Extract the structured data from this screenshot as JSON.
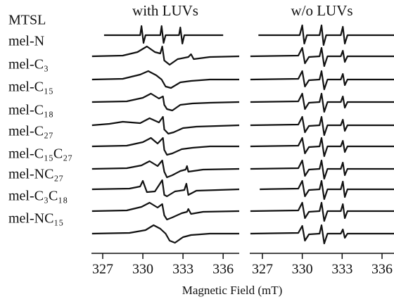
{
  "chart_data": [
    {
      "type": "line",
      "title": "with LUVs",
      "xlabel": "Magnetic Field (mT)",
      "xlim": [
        326.16,
        337.2
      ],
      "xticks": [
        327,
        330,
        333,
        336
      ],
      "color": "#111111",
      "series": [
        {
          "name": "MTSL",
          "x": [
            327.1,
            329.8,
            329.9,
            330.05,
            330.2,
            331.3,
            331.4,
            331.55,
            331.7,
            332.7,
            332.8,
            332.95,
            333.1,
            336.0
          ],
          "values": [
            0,
            0,
            13,
            -11,
            0,
            0,
            13,
            -11,
            0,
            0,
            11,
            -12,
            0,
            0
          ]
        },
        {
          "name": "mel-N",
          "x": [
            326.2,
            328.5,
            329.6,
            330.3,
            330.9,
            331.3,
            331.45,
            331.6,
            332.0,
            332.6,
            333.4,
            333.6,
            333.8,
            335,
            337.2
          ],
          "values": [
            0,
            1,
            6,
            14,
            6,
            4,
            14,
            -6,
            -12,
            -4,
            -1,
            3,
            -4,
            -1,
            0
          ]
        },
        {
          "name": "mel-C₃",
          "x": [
            326.2,
            328.5,
            329.8,
            330.4,
            331.0,
            331.4,
            331.7,
            332.1,
            332.8,
            333.6,
            335,
            337.2
          ],
          "values": [
            0,
            1,
            7,
            12,
            6,
            0,
            -10,
            -12,
            -4,
            -2,
            0,
            0
          ]
        },
        {
          "name": "mel-C₁₅",
          "x": [
            326.2,
            328.8,
            330.0,
            330.6,
            331.2,
            331.5,
            331.6,
            331.8,
            332.2,
            332.8,
            333.7,
            335,
            337.2
          ],
          "values": [
            0,
            1,
            6,
            12,
            5,
            8,
            -4,
            -10,
            -12,
            -4,
            -2,
            -1,
            0
          ]
        },
        {
          "name": "mel-C₁₈",
          "x": [
            326.2,
            327.5,
            328.5,
            329.8,
            330.5,
            331.2,
            331.5,
            331.6,
            331.9,
            332.3,
            333,
            334,
            337.2
          ],
          "values": [
            0,
            2,
            5,
            3,
            10,
            4,
            12,
            -6,
            -12,
            -10,
            -4,
            -2,
            0
          ]
        },
        {
          "name": "mel-C₂₇",
          "x": [
            326.2,
            328.8,
            330.0,
            330.6,
            331.1,
            331.5,
            331.6,
            331.8,
            332.2,
            332.9,
            333.7,
            335,
            337.2
          ],
          "values": [
            0,
            1,
            6,
            12,
            4,
            12,
            -5,
            -12,
            -10,
            -4,
            -2,
            0,
            0
          ]
        },
        {
          "name": "mel-C₁₅C₂₇",
          "x": [
            326.2,
            328.8,
            329.9,
            330.5,
            331.1,
            331.45,
            331.6,
            331.8,
            332.2,
            332.8,
            333.2,
            333.3,
            333.4,
            334.5,
            337.2
          ],
          "values": [
            0,
            1,
            5,
            11,
            4,
            12,
            -4,
            -12,
            -9,
            -3,
            -1,
            4,
            -4,
            -1,
            0
          ]
        },
        {
          "name": "mel-NC₂₇",
          "x": [
            326.2,
            329,
            329.8,
            330.0,
            330.3,
            330.9,
            331.45,
            331.6,
            331.8,
            332.4,
            333.1,
            333.25,
            333.4,
            334,
            337.2
          ],
          "values": [
            0,
            1,
            4,
            12,
            -4,
            -3,
            13,
            -8,
            -10,
            -3,
            -1,
            8,
            -8,
            -2,
            0
          ]
        },
        {
          "name": "mel-C₃C₁₈",
          "x": [
            326.2,
            328.8,
            329.9,
            330.5,
            331.1,
            331.45,
            331.6,
            331.8,
            332.2,
            332.9,
            333.3,
            333.4,
            333.6,
            334.5,
            337.2
          ],
          "values": [
            0,
            1,
            6,
            12,
            5,
            10,
            -6,
            -12,
            -9,
            -3,
            -1,
            3,
            -4,
            -1,
            0
          ]
        },
        {
          "name": "mel-NC₁₅",
          "x": [
            326.2,
            329,
            330.2,
            330.8,
            331.3,
            331.7,
            332.0,
            332.4,
            333.0,
            333.6,
            335,
            337.2
          ],
          "values": [
            0,
            1,
            5,
            12,
            7,
            0,
            -10,
            -13,
            -5,
            -2,
            0,
            0
          ]
        }
      ]
    },
    {
      "type": "line",
      "title": "w/o LUVs",
      "xlim": [
        326.05,
        336.9
      ],
      "xticks": [
        327,
        330,
        333,
        336
      ],
      "color": "#111111",
      "series": [
        {
          "x": [
            326.7,
            329.8,
            330.0,
            330.15,
            330.35,
            331.3,
            331.45,
            331.6,
            331.8,
            332.9,
            333.05,
            333.2,
            333.4,
            336.9
          ],
          "values": [
            0,
            0,
            14,
            -12,
            0,
            0,
            14,
            -14,
            0,
            0,
            12,
            -12,
            0,
            0
          ]
        },
        {
          "x": [
            326.1,
            329.7,
            330.0,
            330.2,
            330.5,
            331.3,
            331.45,
            331.65,
            331.9,
            332.9,
            333.05,
            333.2,
            333.4,
            336.9
          ],
          "values": [
            0,
            1,
            12,
            -10,
            -1,
            0,
            12,
            -14,
            0,
            0,
            8,
            -8,
            0,
            0
          ]
        },
        {
          "x": [
            326.1,
            329.7,
            330.0,
            330.2,
            330.5,
            331.3,
            331.45,
            331.65,
            331.9,
            332.9,
            333.05,
            333.2,
            333.4,
            336.9
          ],
          "values": [
            0,
            1,
            12,
            -10,
            -1,
            0,
            12,
            -14,
            0,
            0,
            8,
            -8,
            0,
            0
          ]
        },
        {
          "x": [
            326.1,
            329.7,
            330.0,
            330.2,
            330.5,
            331.3,
            331.45,
            331.65,
            331.9,
            332.9,
            333.05,
            333.2,
            333.4,
            336.9
          ],
          "values": [
            0,
            1,
            12,
            -10,
            -1,
            0,
            12,
            -14,
            0,
            0,
            8,
            -8,
            0,
            0
          ]
        },
        {
          "x": [
            326.1,
            329.7,
            330.0,
            330.2,
            330.5,
            331.3,
            331.45,
            331.65,
            331.9,
            332.9,
            333.05,
            333.2,
            333.4,
            336.9
          ],
          "values": [
            0,
            1,
            12,
            -10,
            -1,
            0,
            12,
            -14,
            0,
            0,
            8,
            -8,
            0,
            0
          ]
        },
        {
          "x": [
            326.1,
            329.7,
            330.0,
            330.2,
            330.5,
            331.3,
            331.45,
            331.65,
            331.9,
            332.9,
            333.05,
            333.2,
            333.4,
            336.9
          ],
          "values": [
            0,
            1,
            12,
            -10,
            -1,
            0,
            12,
            -14,
            0,
            0,
            8,
            -8,
            0,
            0
          ]
        },
        {
          "x": [
            326.1,
            329.7,
            330.0,
            330.2,
            330.5,
            331.3,
            331.45,
            331.65,
            331.9,
            332.9,
            333.05,
            333.2,
            333.4,
            336.9
          ],
          "values": [
            0,
            1,
            12,
            -10,
            -1,
            0,
            12,
            -14,
            0,
            0,
            9,
            -9,
            0,
            0
          ]
        },
        {
          "x": [
            326.8,
            329.7,
            330.0,
            330.2,
            330.5,
            331.3,
            331.45,
            331.65,
            331.9,
            332.9,
            333.05,
            333.2,
            333.4,
            336.9
          ],
          "values": [
            0,
            1,
            12,
            -10,
            -1,
            0,
            12,
            -14,
            0,
            0,
            11,
            -11,
            0,
            0
          ]
        },
        {
          "x": [
            326.1,
            329.7,
            330.0,
            330.2,
            330.5,
            331.3,
            331.45,
            331.65,
            331.9,
            332.9,
            333.05,
            333.2,
            333.4,
            336.9
          ],
          "values": [
            0,
            1,
            12,
            -10,
            -1,
            0,
            12,
            -14,
            0,
            0,
            10,
            -10,
            0,
            0
          ]
        },
        {
          "x": [
            326.1,
            329.7,
            330.0,
            330.2,
            330.5,
            331.3,
            331.45,
            331.65,
            331.9,
            332.9,
            333.05,
            333.2,
            333.4,
            336.9
          ],
          "values": [
            0,
            1,
            11,
            -10,
            -1,
            0,
            12,
            -14,
            0,
            0,
            6,
            -6,
            0,
            0
          ]
        }
      ]
    }
  ]
}
